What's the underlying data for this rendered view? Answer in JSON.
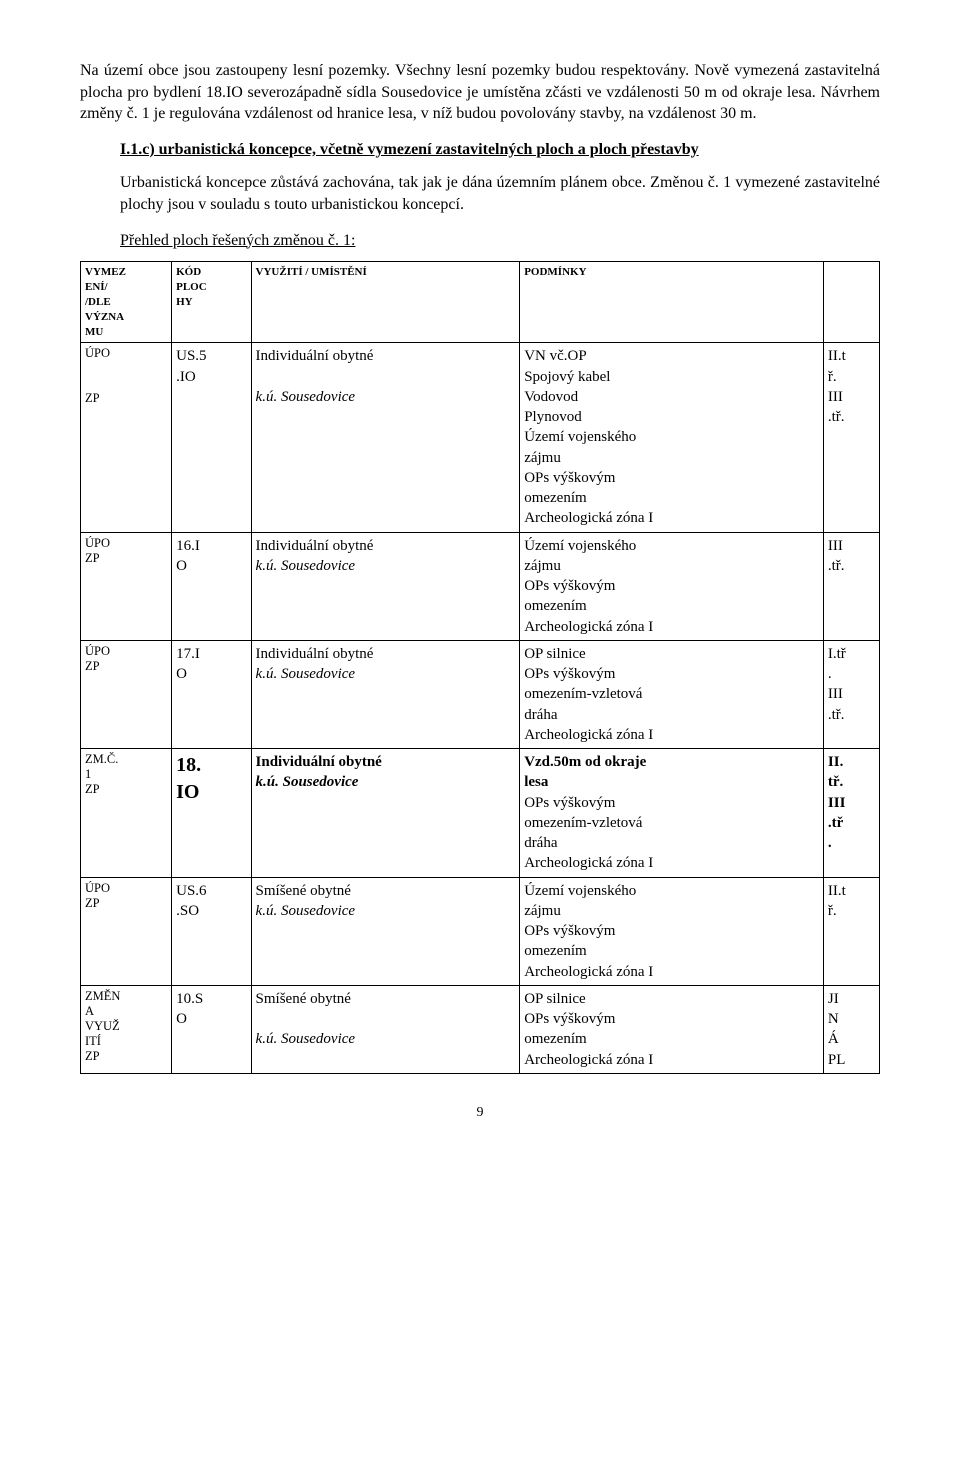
{
  "intro": {
    "p1": "Na území obce jsou zastoupeny lesní pozemky. Všechny lesní pozemky budou respektovány. Nově vymezená zastavitelná plocha pro bydlení 18.IO severozápadně sídla Sousedovice je umístěna zčásti ve vzdálenosti 50 m od okraje lesa. Návrhem změny č. 1 je regulována vzdálenost od hranice lesa, v níž budou povolovány stavby, na vzdálenost 30 m."
  },
  "section": {
    "heading": "I.1.c) urbanistická koncepce, včetně vymezení zastavitelných ploch a ploch přestavby",
    "p1": "Urbanistická koncepce zůstává zachována, tak jak je dána územním plánem obce. Změnou č. 1 vymezené zastavitelné plochy jsou v souladu s touto urbanistickou koncepcí.",
    "caption": "Přehled ploch řešených změnou č. 1:"
  },
  "table": {
    "headers": {
      "vymez": "VYMEZ\nENÍ/\n/DLE\nVÝZNA\nMU",
      "kod": "KÓD\nPLOC\nHY",
      "use": "VYUŽITÍ / UMÍSTĚNÍ",
      "cond": "PODMÍNKY",
      "last": ""
    },
    "rows": [
      {
        "vymez_lines": [
          "ÚPO",
          "",
          "",
          "ZP"
        ],
        "kod": "US.5\n.IO",
        "use_main": "Individuální obytné",
        "use_sub": "k.ú. Sousedovice",
        "cond_lines": [
          "VN vč.OP",
          "Spojový kabel",
          "Vodovod",
          "Plynovod",
          "Území       vojenského",
          "zájmu",
          "OPs výškovým",
          "omezením",
          "Archeologická zóna I"
        ],
        "last_lines": [
          "II.t",
          "ř.",
          "III",
          ".tř."
        ],
        "bold": false
      },
      {
        "vymez_lines": [
          "ÚPO",
          "ZP"
        ],
        "kod": "16.I\nO",
        "use_main": "Individuální obytné",
        "use_sub": "k.ú. Sousedovice",
        "cond_lines": [
          "Území       vojenského",
          "zájmu",
          "OPs výškovým",
          "omezením",
          "Archeologická zóna I"
        ],
        "last_lines": [
          "III",
          ".tř."
        ],
        "bold": false
      },
      {
        "vymez_lines": [
          "ÚPO",
          "ZP"
        ],
        "kod": "17.I\nO",
        "use_main": "Individuální obytné",
        "use_sub": "k.ú. Sousedovice",
        "cond_lines": [
          "OP silnice",
          "OPs výškovým",
          "omezením-vzletová",
          "dráha",
          "Archeologická zóna I"
        ],
        "last_lines": [
          "I.tř",
          ".",
          "III",
          ".tř."
        ],
        "bold": false
      },
      {
        "vymez_lines": [
          "ZM.Č.",
          "1",
          "ZP"
        ],
        "kod": "18.\nIO",
        "use_main": "Individuální obytné",
        "use_sub": "k.ú. Sousedovice",
        "cond_lines": [
          "Vzd.50m  od  okraje",
          "lesa",
          "OPs výškovým",
          "omezením-vzletová",
          "dráha",
          "Archeologická zóna I"
        ],
        "last_lines": [
          "II.",
          "tř.",
          "III",
          ".tř",
          "."
        ],
        "bold": true
      },
      {
        "vymez_lines": [
          "ÚPO",
          "ZP"
        ],
        "kod": "US.6\n.SO",
        "use_main": "Smíšené obytné",
        "use_sub": "k.ú. Sousedovice",
        "cond_lines": [
          "Území       vojenského",
          "zájmu",
          "OPs výškovým",
          "omezením",
          "Archeologická zóna I"
        ],
        "last_lines": [
          "II.t",
          "ř."
        ],
        "bold": false
      },
      {
        "vymez_lines": [
          "ZMĚN",
          "A",
          "VYUŽ",
          "ITÍ",
          "ZP"
        ],
        "kod": "10.S\nO",
        "use_main": "Smíšené obytné",
        "use_sub": "k.ú. Sousedovice",
        "cond_lines": [
          "OP silnice",
          "OPs výškovým",
          "omezením",
          "Archeologická zóna I"
        ],
        "last_lines": [
          "JI",
          "N",
          "Á",
          "PL"
        ],
        "bold": false
      }
    ]
  },
  "page_number": "9"
}
